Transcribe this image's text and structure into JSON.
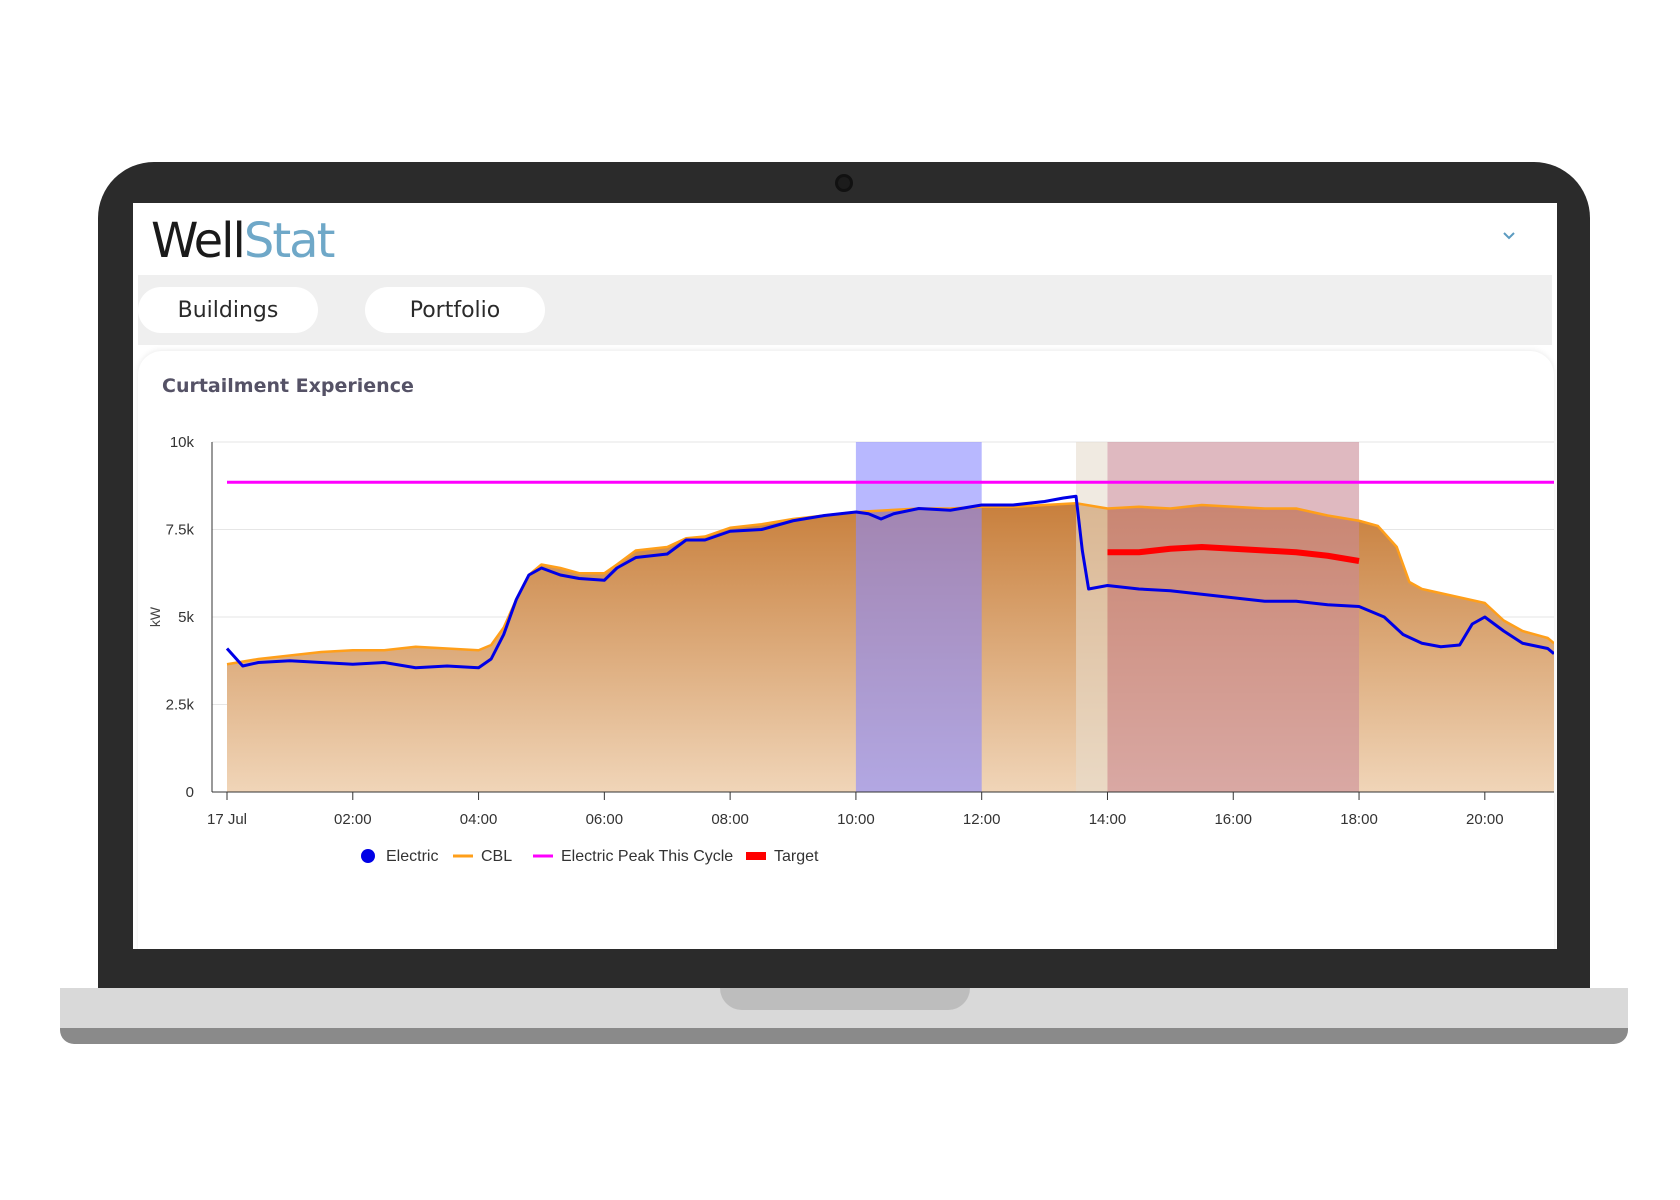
{
  "app": {
    "brand_part1": "Well",
    "brand_part2": "Stat"
  },
  "nav": {
    "tabs": [
      {
        "label": "Buildings"
      },
      {
        "label": "Portfolio"
      }
    ]
  },
  "card": {
    "title": "Curtailment Experience"
  },
  "colors": {
    "electric": "#0000e6",
    "cbl": "#ff9f1a",
    "peak": "#ff00ff",
    "target": "#ff0000",
    "area_top": "#c87f3c",
    "area_bottom": "#f0d5b8",
    "band_blue": "#8888ff",
    "band_tan": "#e6dccd",
    "band_mauve": "#c98a96",
    "brand_accent": "#6fa8c8"
  },
  "chart_data": {
    "type": "line",
    "ylabel": "kW",
    "ylim": [
      0,
      10000
    ],
    "y_ticks": [
      {
        "value": 0,
        "label": "0"
      },
      {
        "value": 2500,
        "label": "2.5k"
      },
      {
        "value": 5000,
        "label": "5k"
      },
      {
        "value": 7500,
        "label": "7.5k"
      },
      {
        "value": 10000,
        "label": "10k"
      }
    ],
    "x_range_hours": [
      0,
      21.1
    ],
    "x_ticks": [
      {
        "hour": 0,
        "label": "17 Jul"
      },
      {
        "hour": 2,
        "label": "02:00"
      },
      {
        "hour": 4,
        "label": "04:00"
      },
      {
        "hour": 6,
        "label": "06:00"
      },
      {
        "hour": 8,
        "label": "08:00"
      },
      {
        "hour": 10,
        "label": "10:00"
      },
      {
        "hour": 12,
        "label": "12:00"
      },
      {
        "hour": 14,
        "label": "14:00"
      },
      {
        "hour": 16,
        "label": "16:00"
      },
      {
        "hour": 18,
        "label": "18:00"
      },
      {
        "hour": 20,
        "label": "20:00"
      }
    ],
    "bands": [
      {
        "from": 10,
        "to": 12,
        "color": "band_blue"
      },
      {
        "from": 13.5,
        "to": 14,
        "color": "band_tan"
      },
      {
        "from": 14,
        "to": 18,
        "color": "band_mauve"
      }
    ],
    "series": [
      {
        "name": "Electric",
        "points": [
          [
            0,
            4100
          ],
          [
            0.25,
            3600
          ],
          [
            0.5,
            3700
          ],
          [
            1,
            3750
          ],
          [
            1.5,
            3700
          ],
          [
            2,
            3650
          ],
          [
            2.5,
            3700
          ],
          [
            3,
            3550
          ],
          [
            3.5,
            3600
          ],
          [
            4,
            3550
          ],
          [
            4.2,
            3800
          ],
          [
            4.4,
            4500
          ],
          [
            4.6,
            5500
          ],
          [
            4.8,
            6200
          ],
          [
            5,
            6400
          ],
          [
            5.3,
            6200
          ],
          [
            5.6,
            6100
          ],
          [
            6,
            6050
          ],
          [
            6.2,
            6400
          ],
          [
            6.5,
            6700
          ],
          [
            7,
            6800
          ],
          [
            7.3,
            7200
          ],
          [
            7.6,
            7200
          ],
          [
            8,
            7450
          ],
          [
            8.5,
            7500
          ],
          [
            9,
            7750
          ],
          [
            9.5,
            7900
          ],
          [
            10,
            8000
          ],
          [
            10.2,
            7950
          ],
          [
            10.4,
            7800
          ],
          [
            10.6,
            7950
          ],
          [
            11,
            8100
          ],
          [
            11.5,
            8050
          ],
          [
            12,
            8200
          ],
          [
            12.5,
            8200
          ],
          [
            13,
            8300
          ],
          [
            13.3,
            8400
          ],
          [
            13.5,
            8450
          ],
          [
            13.6,
            6900
          ],
          [
            13.7,
            5800
          ],
          [
            14,
            5900
          ],
          [
            14.5,
            5800
          ],
          [
            15,
            5750
          ],
          [
            15.5,
            5650
          ],
          [
            16,
            5550
          ],
          [
            16.5,
            5450
          ],
          [
            17,
            5450
          ],
          [
            17.5,
            5350
          ],
          [
            18,
            5300
          ],
          [
            18.4,
            5000
          ],
          [
            18.7,
            4500
          ],
          [
            19,
            4250
          ],
          [
            19.3,
            4150
          ],
          [
            19.6,
            4200
          ],
          [
            19.8,
            4800
          ],
          [
            20,
            5000
          ],
          [
            20.3,
            4600
          ],
          [
            20.6,
            4250
          ],
          [
            21,
            4100
          ],
          [
            21.1,
            3950
          ]
        ]
      },
      {
        "name": "CBL",
        "points": [
          [
            0,
            3650
          ],
          [
            0.5,
            3800
          ],
          [
            1,
            3900
          ],
          [
            1.5,
            4000
          ],
          [
            2,
            4050
          ],
          [
            2.5,
            4050
          ],
          [
            3,
            4150
          ],
          [
            3.5,
            4100
          ],
          [
            4,
            4050
          ],
          [
            4.2,
            4200
          ],
          [
            4.4,
            4700
          ],
          [
            4.6,
            5500
          ],
          [
            4.8,
            6200
          ],
          [
            5,
            6500
          ],
          [
            5.3,
            6400
          ],
          [
            5.6,
            6250
          ],
          [
            6,
            6250
          ],
          [
            6.2,
            6500
          ],
          [
            6.5,
            6900
          ],
          [
            7,
            7000
          ],
          [
            7.3,
            7250
          ],
          [
            7.6,
            7300
          ],
          [
            8,
            7550
          ],
          [
            8.5,
            7650
          ],
          [
            9,
            7800
          ],
          [
            9.5,
            7900
          ],
          [
            10,
            8000
          ],
          [
            10.5,
            8050
          ],
          [
            11,
            8100
          ],
          [
            11.5,
            8100
          ],
          [
            12,
            8150
          ],
          [
            12.5,
            8150
          ],
          [
            13,
            8200
          ],
          [
            13.5,
            8250
          ],
          [
            14,
            8100
          ],
          [
            14.5,
            8150
          ],
          [
            15,
            8100
          ],
          [
            15.5,
            8200
          ],
          [
            16,
            8150
          ],
          [
            16.5,
            8100
          ],
          [
            17,
            8100
          ],
          [
            17.5,
            7900
          ],
          [
            18,
            7750
          ],
          [
            18.3,
            7600
          ],
          [
            18.6,
            7000
          ],
          [
            18.8,
            6000
          ],
          [
            19,
            5800
          ],
          [
            19.5,
            5600
          ],
          [
            20,
            5400
          ],
          [
            20.3,
            4900
          ],
          [
            20.6,
            4600
          ],
          [
            21,
            4400
          ],
          [
            21.1,
            4250
          ]
        ]
      },
      {
        "name": "Electric Peak This Cycle",
        "points": [
          [
            0,
            8850
          ],
          [
            21.1,
            8850
          ]
        ]
      },
      {
        "name": "Target",
        "points": [
          [
            14,
            6850
          ],
          [
            14.5,
            6850
          ],
          [
            15,
            6950
          ],
          [
            15.5,
            7000
          ],
          [
            16,
            6950
          ],
          [
            16.5,
            6900
          ],
          [
            17,
            6850
          ],
          [
            17.5,
            6750
          ],
          [
            18,
            6600
          ]
        ]
      }
    ],
    "legend": [
      "Electric",
      "CBL",
      "Electric Peak This Cycle",
      "Target"
    ],
    "legend_position": "bottom-left",
    "grid": true
  }
}
